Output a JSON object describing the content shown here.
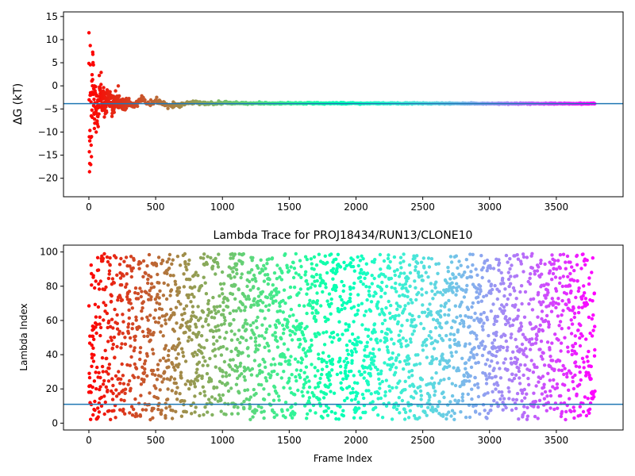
{
  "chart_data": [
    {
      "type": "scatter",
      "title": "",
      "xlabel": "",
      "ylabel": "ΔG (kT)",
      "xlim": [
        -190,
        4000
      ],
      "ylim": [
        -24,
        16
      ],
      "xticks": [
        0,
        500,
        1000,
        1500,
        2000,
        2500,
        3000,
        3500
      ],
      "yticks": [
        -20,
        -15,
        -10,
        -5,
        0,
        5,
        10,
        15
      ],
      "n_frames": 3790,
      "colormap": "rainbow",
      "hline": {
        "y": -3.85,
        "color": "#1f77b4"
      },
      "trace": {
        "x": [
          0,
          5,
          10,
          15,
          20,
          30,
          40,
          50,
          60,
          70,
          80,
          100,
          120,
          150,
          180,
          200,
          250,
          300,
          350,
          400,
          450,
          500,
          550,
          600,
          700,
          800,
          900,
          1000,
          1200,
          1500,
          2000,
          2500,
          3000,
          3500,
          3790
        ],
        "y": [
          10,
          -14,
          2,
          -10,
          -6,
          3.5,
          -8,
          -2,
          -7,
          -5,
          -1,
          -3,
          -4.5,
          -2,
          -5,
          -3,
          -4,
          -3.5,
          -4.2,
          -3,
          -4,
          -3.2,
          -3.8,
          -4.3,
          -4,
          -3.6,
          -3.9,
          -3.7,
          -3.8,
          -3.75,
          -3.8,
          -3.8,
          -3.85,
          -3.85,
          -3.85
        ],
        "spread": [
          12,
          12,
          10,
          9,
          8,
          7,
          6,
          5,
          4.5,
          4,
          3.5,
          3,
          2.6,
          2.2,
          1.8,
          1.5,
          1.2,
          1.0,
          0.8,
          0.7,
          0.6,
          0.5,
          0.45,
          0.4,
          0.35,
          0.3,
          0.25,
          0.2,
          0.18,
          0.15,
          0.12,
          0.1,
          0.1,
          0.1,
          0.1
        ]
      }
    },
    {
      "type": "scatter",
      "title": "Lambda Trace for PROJ18434/RUN13/CLONE10",
      "xlabel": "Frame Index",
      "ylabel": "Lambda Index",
      "xlim": [
        -190,
        4000
      ],
      "ylim": [
        -4,
        104
      ],
      "xticks": [
        0,
        500,
        1000,
        1500,
        2000,
        2500,
        3000,
        3500
      ],
      "yticks": [
        0,
        20,
        40,
        60,
        80,
        100
      ],
      "n_frames": 3790,
      "colormap": "rainbow",
      "hline": {
        "y": 11,
        "color": "#1f77b4"
      },
      "value_range": [
        2,
        99
      ]
    }
  ]
}
